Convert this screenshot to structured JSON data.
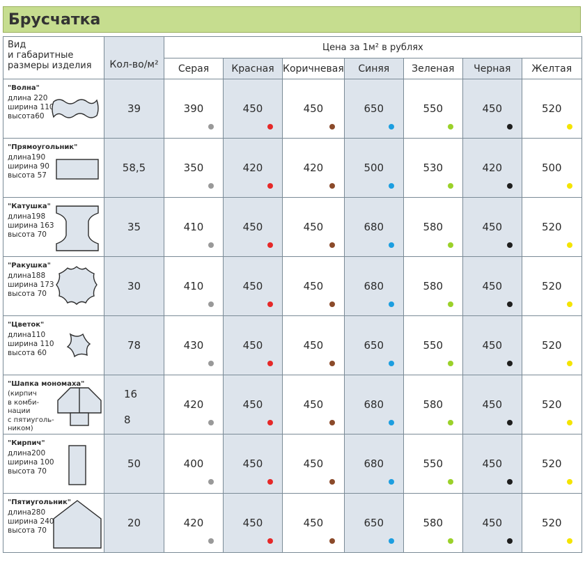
{
  "title": "Брусчатка",
  "header": {
    "kind_lines": [
      "Вид",
      "и габаритные",
      "размеры изделия"
    ],
    "qty_label": "Кол-во/м²",
    "price_label": "Цена за 1м² в рублях",
    "colors": [
      "Серая",
      "Красная",
      "Коричневая",
      "Синяя",
      "Зеленая",
      "Черная",
      "Желтая"
    ]
  },
  "dot_colors": [
    "#999999",
    "#e62828",
    "#8b4a2a",
    "#1c9ee0",
    "#9bd12a",
    "#1e1e1e",
    "#f4e400"
  ],
  "rows": [
    {
      "name": "\"Волна\"",
      "dims": [
        "длина 220",
        "ширина 110",
        "высота60"
      ],
      "qty": "39",
      "prices": [
        "390",
        "450",
        "450",
        "650",
        "550",
        "450",
        "520"
      ]
    },
    {
      "name": "\"Прямоугольник\"",
      "dims": [
        "длина190",
        "ширина 90",
        "высота 57"
      ],
      "qty": "58,5",
      "prices": [
        "350",
        "420",
        "420",
        "500",
        "530",
        "420",
        "500"
      ]
    },
    {
      "name": "\"Катушка\"",
      "dims": [
        "длина198",
        "ширина 163",
        "высота 70"
      ],
      "qty": "35",
      "prices": [
        "410",
        "450",
        "450",
        "680",
        "580",
        "450",
        "520"
      ]
    },
    {
      "name": "\"Ракушка\"",
      "dims": [
        "длина188",
        "ширина 173",
        "высота 70"
      ],
      "qty": "30",
      "prices": [
        "410",
        "450",
        "450",
        "680",
        "580",
        "450",
        "520"
      ]
    },
    {
      "name": "\"Цветок\"",
      "dims": [
        "длина110",
        "ширина 110",
        "высота 60"
      ],
      "qty": "78",
      "prices": [
        "430",
        "450",
        "450",
        "650",
        "550",
        "450",
        "520"
      ]
    },
    {
      "name": "\"Шапка мономаха\"",
      "dims": [
        "(кирпич",
        "в комби-",
        "нации",
        "с пятиуголь-",
        "ником)"
      ],
      "qty": "16",
      "qty2": "8",
      "prices": [
        "420",
        "450",
        "450",
        "680",
        "580",
        "450",
        "520"
      ]
    },
    {
      "name": "\"Кирпич\"",
      "dims": [
        "длина200",
        "ширина 100",
        "высота 70"
      ],
      "qty": "50",
      "prices": [
        "400",
        "450",
        "450",
        "680",
        "550",
        "450",
        "520"
      ]
    },
    {
      "name": "\"Пятиугольник\"",
      "dims": [
        "длина280",
        "ширина 240",
        "высота 70"
      ],
      "qty": "20",
      "prices": [
        "420",
        "450",
        "450",
        "650",
        "580",
        "450",
        "520"
      ]
    }
  ]
}
